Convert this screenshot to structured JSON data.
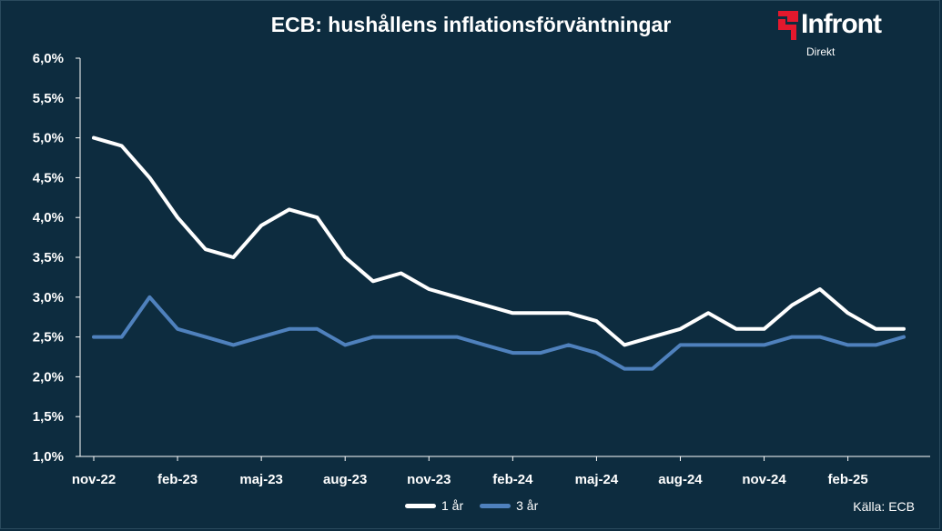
{
  "chart_data": {
    "type": "line",
    "title": "ECB: hushållens inflationsförväntningar",
    "x": [
      "nov-22",
      "dec-22",
      "jan-23",
      "feb-23",
      "mar-23",
      "apr-23",
      "maj-23",
      "jun-23",
      "jul-23",
      "aug-23",
      "sep-23",
      "okt-23",
      "nov-23",
      "dec-23",
      "jan-24",
      "feb-24",
      "mar-24",
      "apr-24",
      "maj-24",
      "jun-24",
      "jul-24",
      "aug-24",
      "sep-24",
      "okt-24",
      "nov-24",
      "dec-24",
      "jan-25",
      "feb-25",
      "mar-25",
      "apr-25"
    ],
    "xtick_labels": [
      "nov-22",
      "feb-23",
      "maj-23",
      "aug-23",
      "nov-23",
      "feb-24",
      "maj-24",
      "aug-24",
      "nov-24",
      "feb-25"
    ],
    "yticks": [
      "1,0%",
      "1,5%",
      "2,0%",
      "2,5%",
      "3,0%",
      "3,5%",
      "4,0%",
      "4,5%",
      "5,0%",
      "5,5%",
      "6,0%"
    ],
    "ylim": [
      1.0,
      6.0
    ],
    "series": [
      {
        "name": "1 år",
        "color": "#ffffff",
        "values": [
          5.0,
          4.9,
          4.5,
          4.0,
          3.6,
          3.5,
          3.9,
          4.1,
          4.0,
          3.5,
          3.2,
          3.3,
          3.1,
          3.0,
          2.9,
          2.8,
          2.8,
          2.8,
          2.7,
          2.4,
          2.5,
          2.6,
          2.8,
          2.6,
          2.6,
          2.9,
          3.1,
          2.8,
          2.6,
          2.6
        ]
      },
      {
        "name": "3 år",
        "color": "#4f81bd",
        "values": [
          2.5,
          2.5,
          3.0,
          2.6,
          2.5,
          2.4,
          2.5,
          2.6,
          2.6,
          2.4,
          2.5,
          2.5,
          2.5,
          2.5,
          2.4,
          2.3,
          2.3,
          2.4,
          2.3,
          2.1,
          2.1,
          2.4,
          2.4,
          2.4,
          2.4,
          2.5,
          2.5,
          2.4,
          2.4,
          2.5
        ]
      }
    ],
    "grid": false,
    "legend": "bottom-center"
  },
  "logo": {
    "name": "Infront",
    "sub": "Direkt"
  },
  "source": "Källa:  ECB",
  "colors": {
    "background": "#0d2c3f",
    "axis": "#ffffff",
    "logo_red": "#e3182d"
  }
}
